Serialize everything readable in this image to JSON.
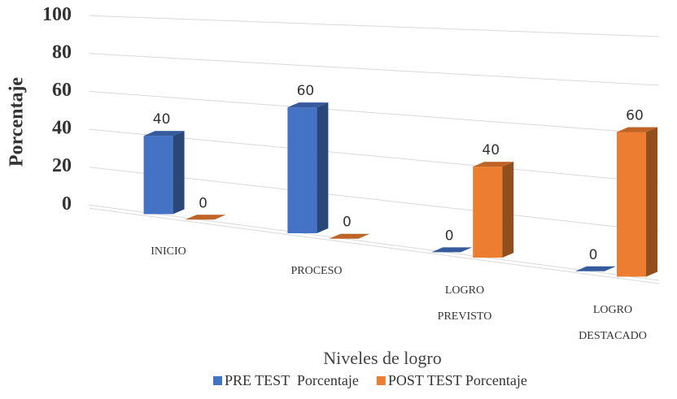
{
  "chart_data": {
    "type": "bar3d",
    "categories": [
      "INICIO",
      "PROCESO",
      "LOGRO PREVISTO",
      "LOGRO DESTACADO"
    ],
    "series": [
      {
        "name": "PRE TEST  Porcentaje",
        "color": "#4472c4",
        "values": [
          40,
          60,
          0,
          0
        ]
      },
      {
        "name": "POST TEST Porcentaje",
        "color": "#ed7d31",
        "values": [
          0,
          0,
          40,
          60
        ]
      }
    ],
    "ylim": [
      0,
      100
    ],
    "yticks": [
      0,
      20,
      40,
      60,
      80,
      100
    ],
    "y_label": "Porcentaje",
    "x_label": "Niveles de logro",
    "grid": true,
    "legend": "bottom"
  }
}
